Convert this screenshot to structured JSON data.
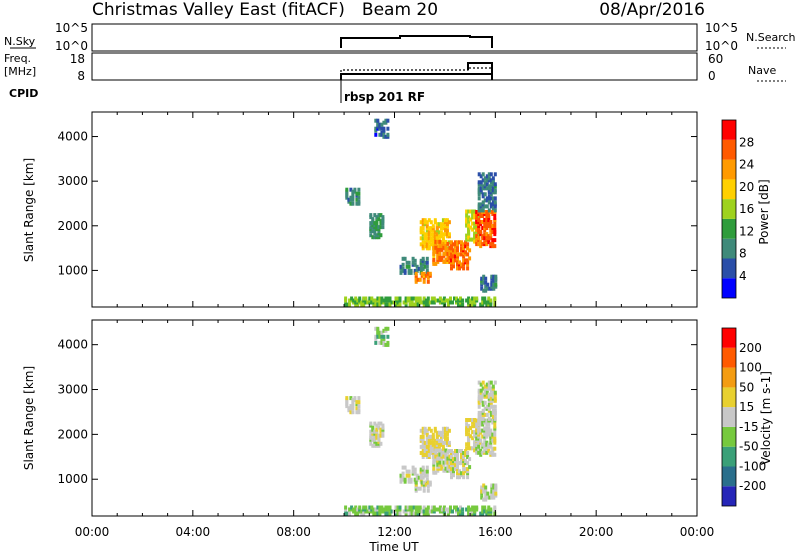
{
  "header": {
    "site": "Christmas Valley East (fitACF)",
    "beam": "Beam 20",
    "date": "08/Apr/2016"
  },
  "strip_sky": {
    "left_label": "N.Sky",
    "left_ticks": [
      "10^5",
      "10^0"
    ],
    "right_ticks": [
      "10^5",
      "10^0"
    ],
    "right_label": "N.Search"
  },
  "strip_freq": {
    "left_label_1": "Freq.",
    "left_label_2": "[MHz]",
    "left_ticks": [
      "18",
      "8"
    ],
    "right_ticks": [
      "60",
      "0"
    ],
    "right_label": "Nave"
  },
  "cpid": {
    "label": "CPID",
    "value": "rbsp 201 RF"
  },
  "colors": {
    "power": [
      "#0000ff",
      "#2a4ea8",
      "#3f8a7a",
      "#2f9c3c",
      "#9ed21e",
      "#ffd000",
      "#ff9a00",
      "#ff5a00",
      "#ff0000"
    ],
    "velocity": [
      "#2626b8",
      "#2a6f8c",
      "#3aa078",
      "#76c93e",
      "#c8c8c8",
      "#e8d030",
      "#f39c12",
      "#ff5a00",
      "#ff0000"
    ],
    "axis": "#000000"
  },
  "chart_data": [
    {
      "type": "heatmap",
      "name": "power",
      "xlabel": "",
      "ylabel": "Slant Range [km]",
      "xlim": [
        0,
        24
      ],
      "ylim": [
        180,
        4550
      ],
      "yticks": [
        "4000",
        "3000",
        "2000",
        "1000"
      ],
      "colorbar_label": "Power [dB]",
      "colorbar_ticks": [
        "28",
        "24",
        "20",
        "16",
        "12",
        "8",
        "4"
      ],
      "colorbar_range": [
        0,
        32
      ],
      "grid": false,
      "regions": [
        {
          "t0": 10.05,
          "t1": 10.6,
          "r0": 2450,
          "r1": 2800,
          "level": 9
        },
        {
          "t0": 11.0,
          "t1": 11.5,
          "r0": 1700,
          "r1": 2200,
          "level": 10
        },
        {
          "t0": 11.2,
          "t1": 11.7,
          "r0": 3950,
          "r1": 4350,
          "level": 6
        },
        {
          "t0": 12.2,
          "t1": 13.3,
          "r0": 900,
          "r1": 1250,
          "level": 9
        },
        {
          "t0": 12.8,
          "t1": 13.4,
          "r0": 700,
          "r1": 900,
          "level": 24
        },
        {
          "t0": 13.0,
          "t1": 14.2,
          "r0": 1450,
          "r1": 2100,
          "level": 20
        },
        {
          "t0": 13.5,
          "t1": 14.3,
          "r0": 1100,
          "r1": 1600,
          "level": 24
        },
        {
          "t0": 14.2,
          "t1": 15.0,
          "r0": 1000,
          "r1": 1600,
          "level": 26
        },
        {
          "t0": 14.8,
          "t1": 15.3,
          "r0": 1600,
          "r1": 2300,
          "level": 17
        },
        {
          "t0": 15.2,
          "t1": 16.0,
          "r0": 1500,
          "r1": 2300,
          "level": 27
        },
        {
          "t0": 15.3,
          "t1": 16.0,
          "r0": 2300,
          "r1": 3150,
          "level": 8
        },
        {
          "t0": 15.4,
          "t1": 16.0,
          "r0": 500,
          "r1": 850,
          "level": 8
        },
        {
          "t0": 10.0,
          "t1": 16.0,
          "r0": 190,
          "r1": 360,
          "level": 14
        }
      ]
    },
    {
      "type": "heatmap",
      "name": "velocity",
      "xlabel": "Time UT",
      "ylabel": "Slant Range [km]",
      "xlim": [
        0,
        24
      ],
      "ylim": [
        180,
        4550
      ],
      "xticks": [
        "00:00",
        "04:00",
        "08:00",
        "12:00",
        "16:00",
        "20:00",
        "00:00"
      ],
      "yticks": [
        "4000",
        "3000",
        "2000",
        "1000"
      ],
      "colorbar_label": "Velocity [m s-1]",
      "colorbar_ticks": [
        "200",
        "100",
        "50",
        "15",
        "-15",
        "-50",
        "-100",
        "-200"
      ],
      "colorbar_range": [
        -250,
        250
      ],
      "grid": false,
      "regions": [
        {
          "t0": 10.05,
          "t1": 10.6,
          "r0": 2450,
          "r1": 2800,
          "level": 5
        },
        {
          "t0": 11.0,
          "t1": 11.5,
          "r0": 1700,
          "r1": 2200,
          "level": 0
        },
        {
          "t0": 11.2,
          "t1": 11.7,
          "r0": 3950,
          "r1": 4350,
          "level": -60
        },
        {
          "t0": 12.2,
          "t1": 13.3,
          "r0": 900,
          "r1": 1250,
          "level": 0
        },
        {
          "t0": 12.8,
          "t1": 13.4,
          "r0": 700,
          "r1": 900,
          "level": 0
        },
        {
          "t0": 13.0,
          "t1": 14.2,
          "r0": 1450,
          "r1": 2100,
          "level": 30
        },
        {
          "t0": 13.5,
          "t1": 14.3,
          "r0": 1100,
          "r1": 1600,
          "level": 0
        },
        {
          "t0": 14.2,
          "t1": 15.0,
          "r0": 1000,
          "r1": 1600,
          "level": 5
        },
        {
          "t0": 14.8,
          "t1": 15.3,
          "r0": 1600,
          "r1": 2300,
          "level": 40
        },
        {
          "t0": 15.2,
          "t1": 16.0,
          "r0": 1500,
          "r1": 2300,
          "level": 0
        },
        {
          "t0": 15.3,
          "t1": 16.0,
          "r0": 2300,
          "r1": 3150,
          "level": 0
        },
        {
          "t0": 15.4,
          "t1": 16.0,
          "r0": 500,
          "r1": 850,
          "level": 0
        },
        {
          "t0": 10.0,
          "t1": 16.0,
          "r0": 190,
          "r1": 360,
          "level": -60
        }
      ]
    }
  ]
}
